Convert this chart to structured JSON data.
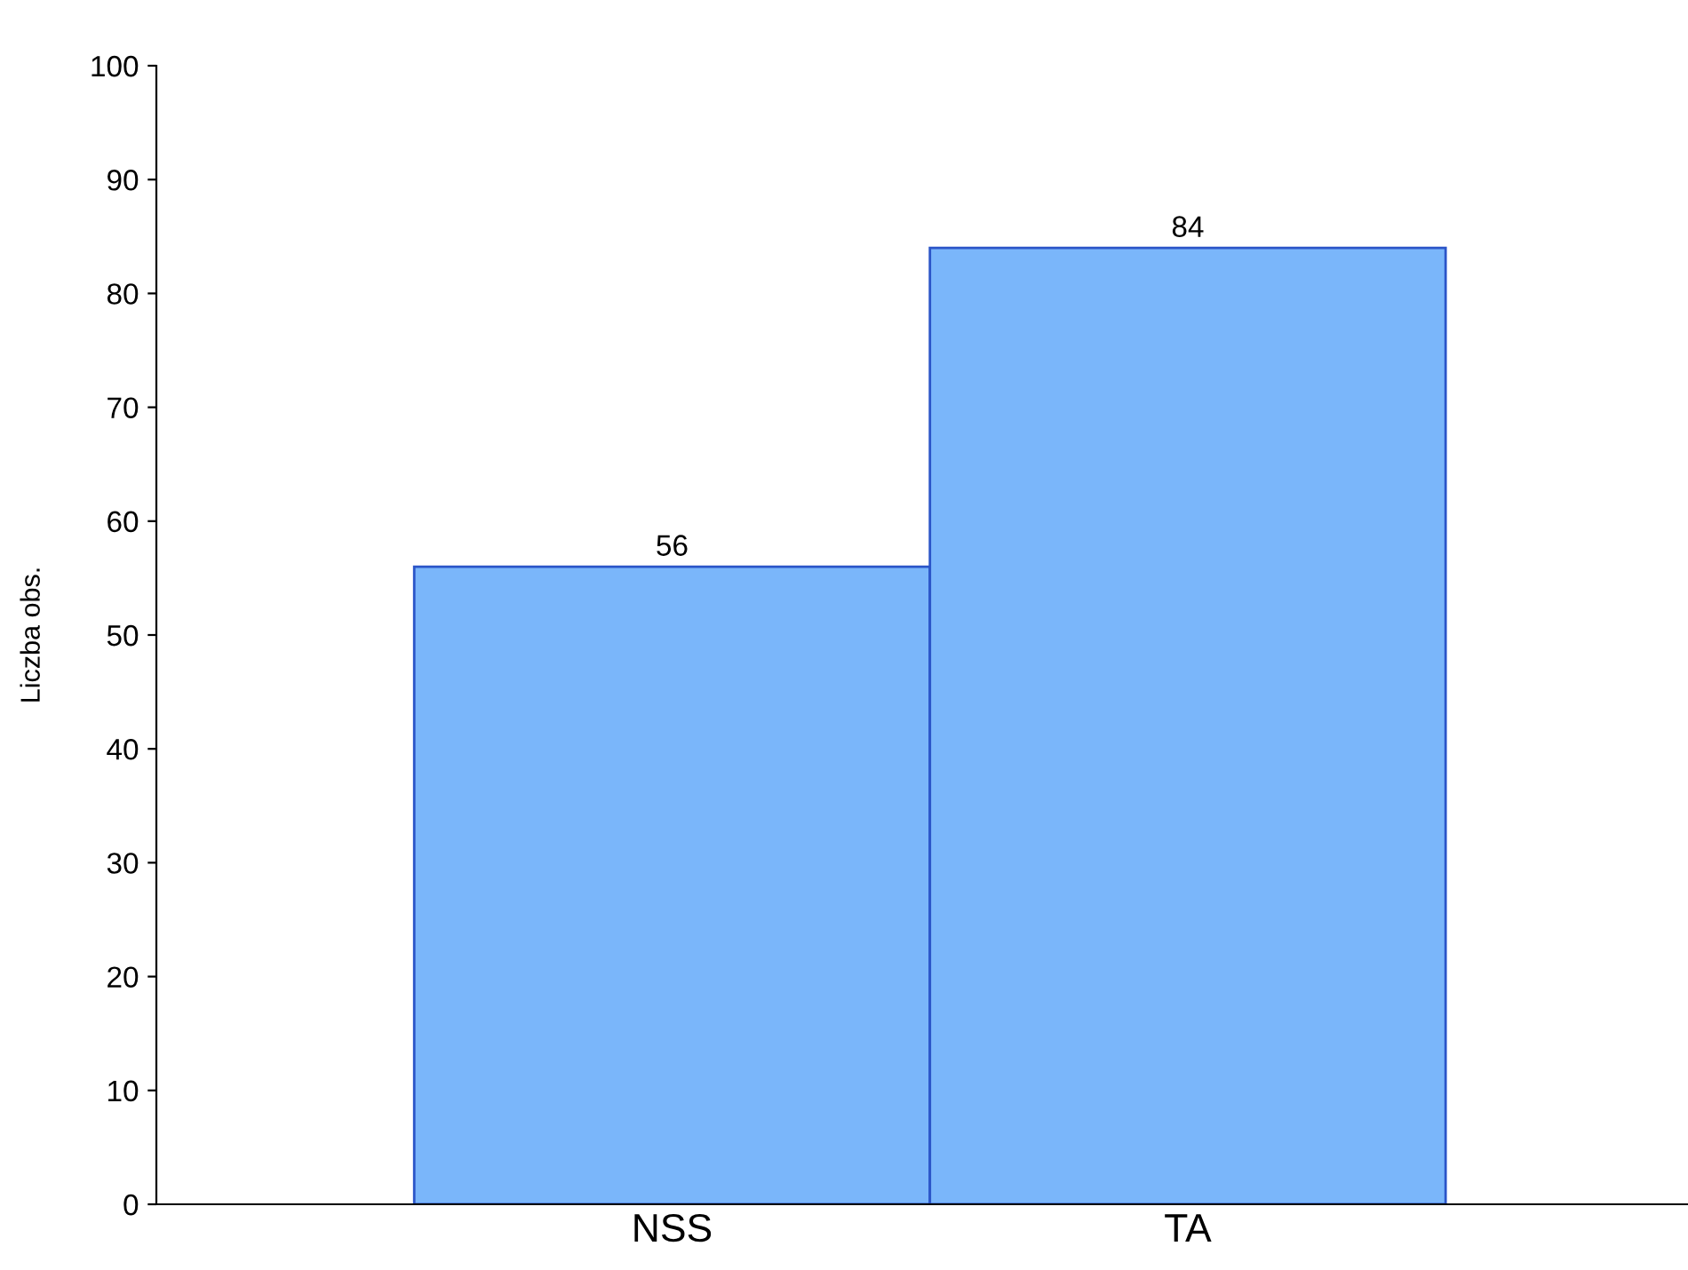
{
  "chart_data": {
    "type": "bar",
    "ylabel": "Liczba obs.",
    "categories": [
      "NSS",
      "TA"
    ],
    "values": [
      56,
      84
    ],
    "color": "#7ab6fa",
    "ylim": [
      0,
      100
    ],
    "yticks": [
      0,
      10,
      20,
      30,
      40,
      50,
      60,
      70,
      80,
      90,
      100
    ],
    "data_labels": true,
    "grid": false,
    "legend": false
  }
}
